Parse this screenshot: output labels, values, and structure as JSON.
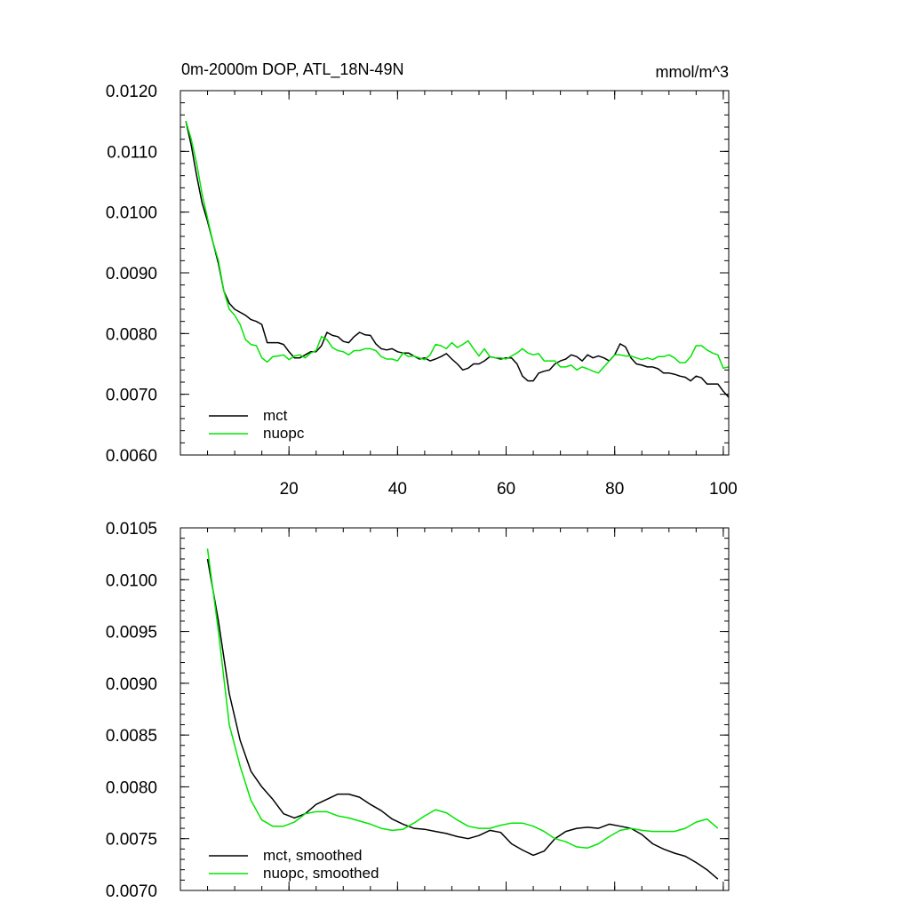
{
  "chart_data": [
    {
      "type": "line",
      "title": "0m-2000m DOP, ATL_18N-49N",
      "units": "mmol/m^3",
      "xlabel": "",
      "ylabel": "",
      "xlim": [
        0,
        101
      ],
      "ylim": [
        0.006,
        0.012
      ],
      "xticks": [
        20,
        40,
        60,
        80,
        100
      ],
      "xtick_labels": [
        "20",
        "40",
        "60",
        "80",
        "100"
      ],
      "yticks": [
        0.006,
        0.007,
        0.008,
        0.009,
        0.01,
        0.011,
        0.012
      ],
      "ytick_labels": [
        "0.0060",
        "0.0070",
        "0.0080",
        "0.0090",
        "0.0100",
        "0.0110",
        "0.0120"
      ],
      "legend_position": "bottom-left",
      "series": [
        {
          "name": "mct",
          "color": "#000000",
          "x_start": 1,
          "values": [
            0.0115,
            0.0111,
            0.0106,
            0.01015,
            0.00985,
            0.0095,
            0.00915,
            0.0087,
            0.0085,
            0.0084,
            0.00835,
            0.0083,
            0.00823,
            0.0082,
            0.00815,
            0.00785,
            0.00785,
            0.00785,
            0.00782,
            0.0077,
            0.0076,
            0.0076,
            0.00765,
            0.0077,
            0.0077,
            0.0078,
            0.00802,
            0.00797,
            0.00795,
            0.00787,
            0.00785,
            0.00795,
            0.00802,
            0.00798,
            0.00797,
            0.00783,
            0.00775,
            0.00773,
            0.00775,
            0.0077,
            0.00768,
            0.00768,
            0.00763,
            0.00758,
            0.0076,
            0.00755,
            0.00758,
            0.00762,
            0.00767,
            0.00758,
            0.0075,
            0.0074,
            0.00743,
            0.0075,
            0.0075,
            0.00755,
            0.00762,
            0.0076,
            0.00758,
            0.0076,
            0.0076,
            0.0075,
            0.0073,
            0.00722,
            0.00722,
            0.00735,
            0.00738,
            0.0074,
            0.0075,
            0.00755,
            0.00758,
            0.00765,
            0.00762,
            0.00755,
            0.00765,
            0.0076,
            0.00763,
            0.0076,
            0.00755,
            0.00765,
            0.00783,
            0.00778,
            0.0076,
            0.0075,
            0.00748,
            0.00745,
            0.00745,
            0.00742,
            0.00735,
            0.00735,
            0.00733,
            0.0073,
            0.00728,
            0.00722,
            0.0073,
            0.00727,
            0.00717,
            0.00717,
            0.00717,
            0.00705,
            0.00695
          ]
        },
        {
          "name": "nuopc",
          "color": "#00e600",
          "x_start": 1,
          "values": [
            0.0115,
            0.0112,
            0.0108,
            0.0103,
            0.0099,
            0.0095,
            0.0092,
            0.0087,
            0.0084,
            0.0083,
            0.00815,
            0.0079,
            0.00782,
            0.0078,
            0.0076,
            0.00753,
            0.00762,
            0.00763,
            0.00765,
            0.00757,
            0.00763,
            0.00765,
            0.0076,
            0.00768,
            0.00772,
            0.00795,
            0.0079,
            0.00777,
            0.00772,
            0.0077,
            0.00765,
            0.00772,
            0.00772,
            0.00775,
            0.00775,
            0.00772,
            0.00762,
            0.00758,
            0.00758,
            0.00755,
            0.00768,
            0.00762,
            0.00763,
            0.0076,
            0.00757,
            0.00765,
            0.00782,
            0.0078,
            0.00775,
            0.00785,
            0.00777,
            0.00782,
            0.00788,
            0.00775,
            0.00763,
            0.00775,
            0.00762,
            0.0076,
            0.0076,
            0.00758,
            0.00763,
            0.00768,
            0.00775,
            0.00768,
            0.00765,
            0.00767,
            0.00755,
            0.00755,
            0.00755,
            0.00745,
            0.00745,
            0.00748,
            0.0074,
            0.00745,
            0.00742,
            0.00738,
            0.00735,
            0.00745,
            0.00755,
            0.00765,
            0.00765,
            0.00763,
            0.00763,
            0.0076,
            0.00757,
            0.0076,
            0.00757,
            0.00762,
            0.00762,
            0.00765,
            0.0076,
            0.00752,
            0.00752,
            0.00762,
            0.0078,
            0.0078,
            0.00773,
            0.00768,
            0.00765,
            0.00743,
            0.00745
          ]
        }
      ]
    },
    {
      "type": "line",
      "title": "",
      "xlabel": "",
      "ylabel": "",
      "xlim": [
        0,
        101
      ],
      "ylim": [
        0.007,
        0.0105
      ],
      "xticks": [
        20,
        40,
        60,
        80,
        100
      ],
      "yticks": [
        0.007,
        0.0075,
        0.008,
        0.0085,
        0.009,
        0.0095,
        0.01,
        0.0105
      ],
      "ytick_labels": [
        "0.0070",
        "0.0075",
        "0.0080",
        "0.0085",
        "0.0090",
        "0.0095",
        "0.0100",
        "0.0105"
      ],
      "legend_position": "bottom-left",
      "series": [
        {
          "name": "mct, smoothed",
          "color": "#000000",
          "x": [
            5,
            7,
            9,
            11,
            13,
            15,
            17,
            19,
            21,
            23,
            25,
            27,
            29,
            31,
            33,
            35,
            37,
            39,
            41,
            43,
            45,
            47,
            49,
            51,
            53,
            55,
            57,
            59,
            61,
            63,
            65,
            67,
            69,
            71,
            73,
            75,
            77,
            79,
            81,
            83,
            85,
            87,
            89,
            91,
            93,
            95,
            97,
            99
          ],
          "values": [
            0.0102,
            0.0096,
            0.0089,
            0.00845,
            0.00815,
            0.008,
            0.00788,
            0.00774,
            0.0077,
            0.00774,
            0.00783,
            0.00788,
            0.00793,
            0.00793,
            0.0079,
            0.00783,
            0.00777,
            0.00769,
            0.00764,
            0.0076,
            0.00759,
            0.00757,
            0.00755,
            0.00752,
            0.0075,
            0.00753,
            0.00758,
            0.00756,
            0.00745,
            0.00739,
            0.00734,
            0.00738,
            0.0075,
            0.00757,
            0.0076,
            0.00761,
            0.0076,
            0.00764,
            0.00762,
            0.0076,
            0.00754,
            0.00745,
            0.0074,
            0.00736,
            0.00733,
            0.00727,
            0.0072,
            0.00711
          ]
        },
        {
          "name": "nuopc, smoothed",
          "color": "#00e600",
          "x": [
            5,
            7,
            9,
            11,
            13,
            15,
            17,
            19,
            21,
            23,
            25,
            27,
            29,
            31,
            33,
            35,
            37,
            39,
            41,
            43,
            45,
            47,
            49,
            51,
            53,
            55,
            57,
            59,
            61,
            63,
            65,
            67,
            69,
            71,
            73,
            75,
            77,
            79,
            81,
            83,
            85,
            87,
            89,
            91,
            93,
            95,
            97,
            99
          ],
          "values": [
            0.0103,
            0.0095,
            0.0086,
            0.0082,
            0.00787,
            0.00768,
            0.00762,
            0.00762,
            0.00766,
            0.00774,
            0.00776,
            0.00776,
            0.00772,
            0.0077,
            0.00767,
            0.00764,
            0.0076,
            0.00758,
            0.00759,
            0.00765,
            0.00772,
            0.00778,
            0.00775,
            0.00768,
            0.00762,
            0.0076,
            0.0076,
            0.00763,
            0.00765,
            0.00765,
            0.00762,
            0.00757,
            0.0075,
            0.00747,
            0.00742,
            0.00741,
            0.00745,
            0.00752,
            0.00758,
            0.0076,
            0.00758,
            0.00757,
            0.00757,
            0.00757,
            0.0076,
            0.00766,
            0.00769,
            0.0076
          ]
        }
      ]
    }
  ]
}
